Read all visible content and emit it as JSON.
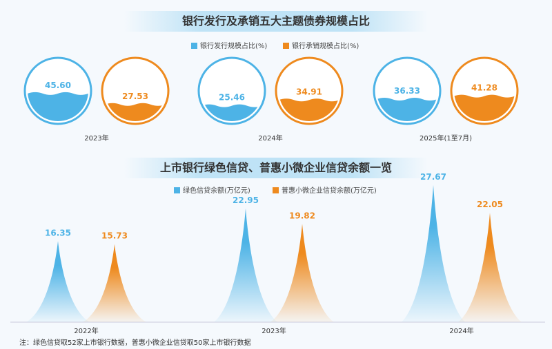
{
  "colors": {
    "blue": "#4db3e6",
    "orange": "#ee8a1e"
  },
  "chart_data": [
    {
      "type": "pie",
      "title": "银行发行及承销五大主题债券规模占比",
      "categories": [
        "2023年",
        "2024年",
        "2025年(1至7月)"
      ],
      "series": [
        {
          "name": "银行发行规模占比(%)",
          "values": [
            45.6,
            25.46,
            36.33
          ]
        },
        {
          "name": "银行承销规模占比(%)",
          "values": [
            27.53,
            34.91,
            41.28
          ]
        }
      ],
      "labels": [
        [
          "45.60",
          "27.53"
        ],
        [
          "25.46",
          "34.91"
        ],
        [
          "36.33",
          "41.28"
        ]
      ]
    },
    {
      "type": "bar",
      "title": "上市银行绿色信贷、普惠小微企业信贷余额一览",
      "categories": [
        "2022年",
        "2023年",
        "2024年"
      ],
      "series": [
        {
          "name": "绿色信贷余额(万亿元)",
          "values": [
            16.35,
            22.95,
            27.67
          ]
        },
        {
          "name": "普惠小微企业信贷余额(万亿元)",
          "values": [
            15.73,
            19.82,
            22.05
          ]
        }
      ],
      "labels": [
        [
          "16.35",
          "15.73"
        ],
        [
          "22.95",
          "19.82"
        ],
        [
          "27.67",
          "22.05"
        ]
      ]
    }
  ],
  "note": "注：绿色信贷取52家上市银行数据，普惠小微企业信贷取50家上市银行数据"
}
